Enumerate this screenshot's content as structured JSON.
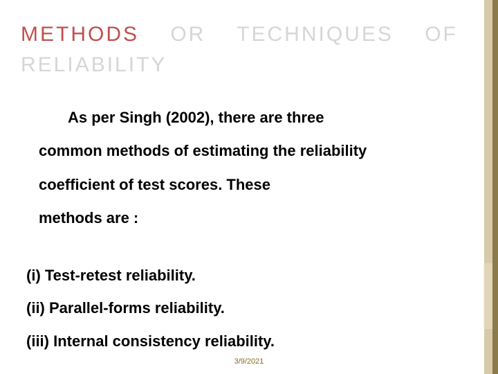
{
  "colors": {
    "accent": "#c0504d",
    "title_faded": "#d6d6d6",
    "body_text": "#000000",
    "side_outer": "#d8caa8",
    "side_inner": "#8b7a4a",
    "footer_text": "#8a6a1f",
    "background": "#ffffff"
  },
  "title": {
    "word1": "METHODS",
    "word2": "OR",
    "word3": "TECHNIQUES",
    "word4": "OF",
    "word5": "RELIABILITY",
    "fontsize": 30,
    "letter_spacing": 3
  },
  "body": {
    "line1": "As per Singh (2002), there are three",
    "line2": "common methods of estimating the reliability",
    "line3": "coefficient of test scores. These",
    "line4": "methods are :",
    "fontsize": 22
  },
  "list": {
    "item1": "(i) Test-retest reliability.",
    "item2": "(ii) Parallel-forms reliability.",
    "item3": "(iii) Internal consistency reliability.",
    "fontsize": 22
  },
  "footer": {
    "date": "3/9/2021",
    "fontsize": 11
  }
}
